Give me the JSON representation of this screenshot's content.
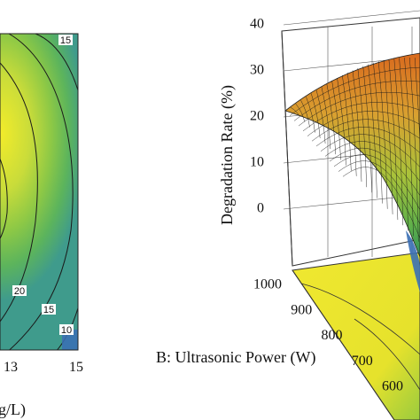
{
  "chart_data": [
    {
      "type": "heatmap",
      "title": "",
      "xlabel_fragment": "g/L)",
      "x_ticks": [
        "13",
        "15"
      ],
      "contour_labels": [
        "15",
        "20",
        "15",
        "10"
      ],
      "grid": false
    },
    {
      "type": "surface",
      "title": "",
      "zlabel": "Degradation Rate (%)",
      "zlim": [
        0,
        40
      ],
      "z_ticks": [
        "0",
        "10",
        "20",
        "30",
        "40"
      ],
      "ylabel": "B: Ultrasonic Power (W)",
      "y_ticks": [
        "1000",
        "900",
        "800",
        "700",
        "600"
      ],
      "ylim": [
        600,
        1000
      ],
      "surface_z_at_edge": {
        "B": 1000,
        "z_left": 21,
        "z_peak": 37
      },
      "grid": true
    }
  ],
  "colors": {
    "low": "#2b6cb0",
    "mid": "#4fb06a",
    "high": "#e8e22a",
    "peak": "#e07020"
  }
}
